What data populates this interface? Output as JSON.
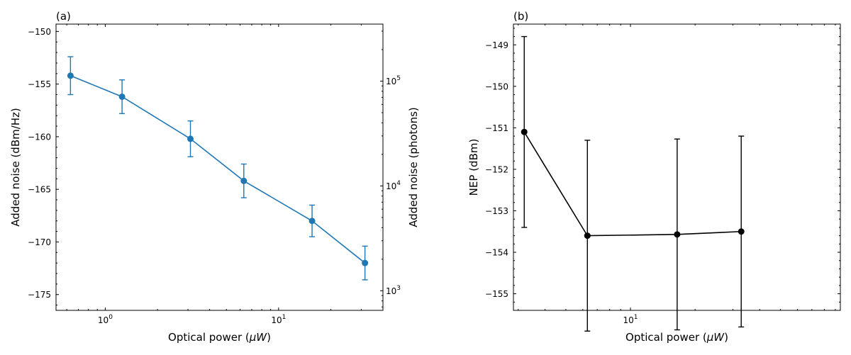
{
  "chart_data": [
    {
      "type": "line",
      "panel_label": "(a)",
      "xlabel": "Optical power (μW)",
      "xlabel_parts": [
        "Optical power (",
        "μW",
        ")"
      ],
      "ylabel": "Added noise (dBm/Hz)",
      "ylabel_right": "Added noise (photons)",
      "x_scale": "log",
      "xlim": [
        0.52,
        40
      ],
      "ylim": [
        -176.5,
        -149.3
      ],
      "y_right_scale": "log",
      "y_right_lim": [
        650,
        350000
      ],
      "color": "#1f77b4",
      "x_ticks": [
        {
          "value": 1,
          "base": "10",
          "exp": "0"
        },
        {
          "value": 10,
          "base": "10",
          "exp": "1"
        }
      ],
      "y_ticks": [
        {
          "value": -150,
          "label": "−150"
        },
        {
          "value": -155,
          "label": "−155"
        },
        {
          "value": -160,
          "label": "−160"
        },
        {
          "value": -165,
          "label": "−165"
        },
        {
          "value": -170,
          "label": "−170"
        },
        {
          "value": -175,
          "label": "−175"
        }
      ],
      "y_right_ticks": [
        {
          "value": 1000,
          "base": "10",
          "exp": "3"
        },
        {
          "value": 10000,
          "base": "10",
          "exp": "4"
        },
        {
          "value": 100000,
          "base": "10",
          "exp": "5"
        }
      ],
      "series": [
        {
          "name": "Added noise",
          "x": [
            0.63,
            1.25,
            3.1,
            6.3,
            15.6,
            31.5
          ],
          "y": [
            -154.2,
            -156.2,
            -160.2,
            -164.2,
            -168.0,
            -172.0
          ],
          "yerr": [
            1.8,
            1.6,
            1.7,
            1.6,
            1.5,
            1.6
          ]
        }
      ]
    },
    {
      "type": "line",
      "panel_label": "(b)",
      "xlabel": "Optical power (μW)",
      "xlabel_parts": [
        "Optical power (",
        "μW",
        ")"
      ],
      "ylabel": "NEP (dBm)",
      "x_scale": "log",
      "xlim": [
        2.85,
        95
      ],
      "ylim": [
        -155.4,
        -148.5
      ],
      "color": "#000000",
      "x_ticks": [
        {
          "value": 10,
          "base": "10",
          "exp": "1"
        }
      ],
      "y_ticks": [
        {
          "value": -149,
          "label": "−149"
        },
        {
          "value": -150,
          "label": "−150"
        },
        {
          "value": -151,
          "label": "−151"
        },
        {
          "value": -152,
          "label": "−152"
        },
        {
          "value": -153,
          "label": "−153"
        },
        {
          "value": -154,
          "label": "−154"
        },
        {
          "value": -155,
          "label": "−155"
        }
      ],
      "series": [
        {
          "name": "NEP",
          "x": [
            3.2,
            6.3,
            16.5,
            32.8
          ],
          "y": [
            -151.1,
            -153.6,
            -153.57,
            -153.5
          ],
          "yerr": [
            2.3,
            2.3,
            2.3,
            2.3
          ]
        }
      ]
    }
  ]
}
